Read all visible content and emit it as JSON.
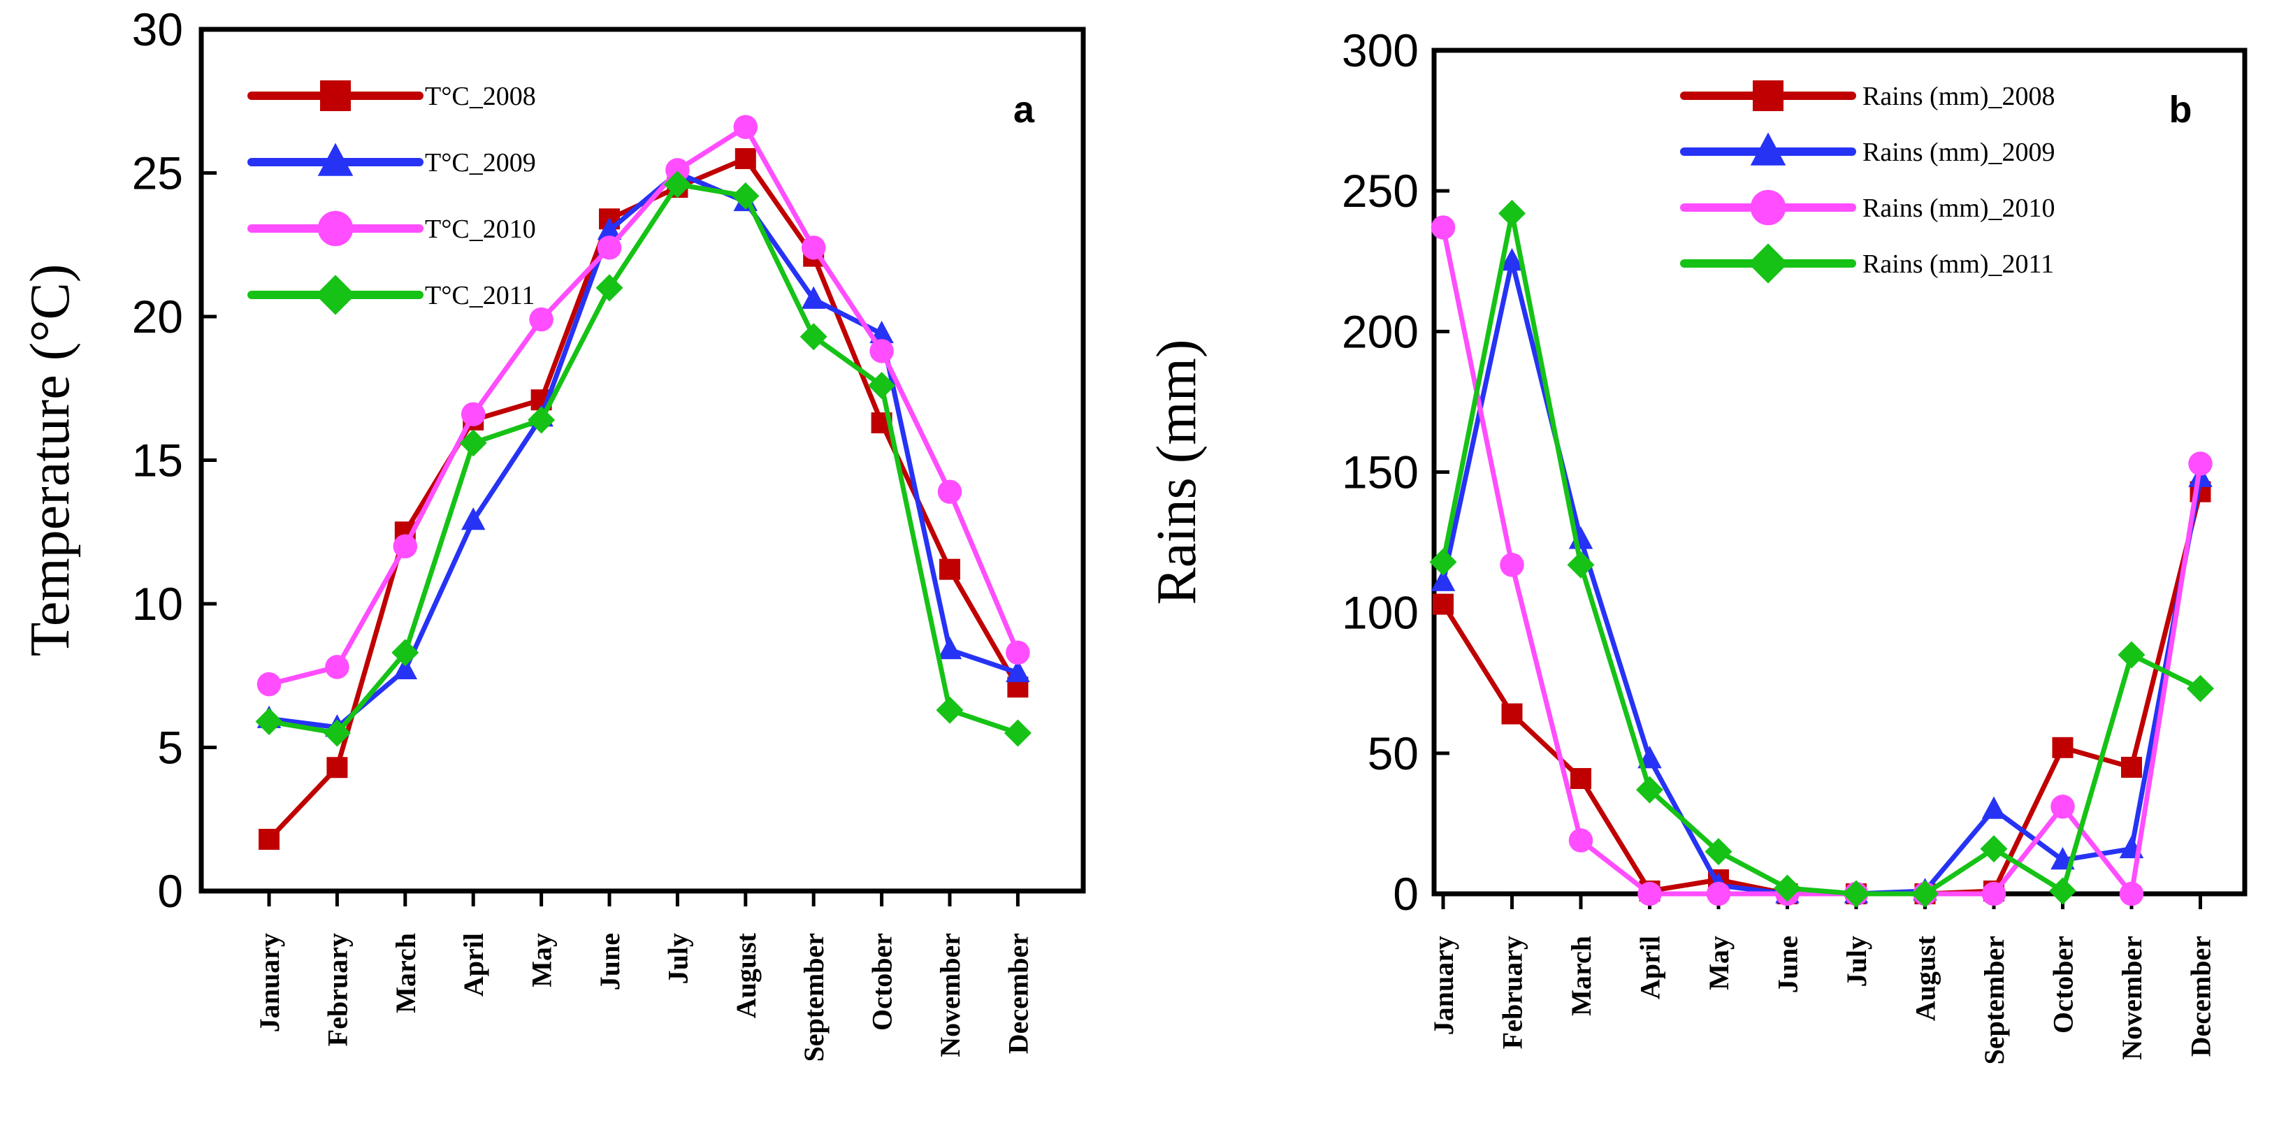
{
  "chart_data": [
    {
      "type": "line",
      "panel_label": "a",
      "title": "",
      "xlabel": "",
      "ylabel": "Temperature (°C)",
      "ylim": [
        0,
        30
      ],
      "yticks": [
        0,
        5,
        10,
        15,
        20,
        25,
        30
      ],
      "grid": false,
      "legend_position": "top-left",
      "categories": [
        "January",
        "February",
        "March",
        "April",
        "May",
        "June",
        "July",
        "August",
        "September",
        "October",
        "November",
        "December"
      ],
      "series": [
        {
          "name": "T°C_2008",
          "color": "#c00000",
          "marker": "square",
          "values": [
            1.8,
            4.3,
            12.5,
            16.4,
            17.1,
            23.4,
            24.5,
            25.5,
            22.1,
            16.3,
            11.2,
            7.1
          ]
        },
        {
          "name": "T°C_2009",
          "color": "#2633f5",
          "marker": "triangle",
          "values": [
            6.0,
            5.7,
            7.7,
            12.9,
            16.5,
            23.0,
            25.0,
            24.0,
            20.6,
            19.4,
            8.4,
            7.6
          ]
        },
        {
          "name": "T°C_2010",
          "color": "#ff4dff",
          "marker": "circle",
          "values": [
            7.2,
            7.8,
            12.0,
            16.6,
            19.9,
            22.4,
            25.1,
            26.6,
            22.4,
            18.8,
            13.9,
            8.3
          ]
        },
        {
          "name": "T°C_2011",
          "color": "#16c216",
          "marker": "diamond",
          "values": [
            5.9,
            5.5,
            8.3,
            15.6,
            16.4,
            21.0,
            24.6,
            24.2,
            19.3,
            17.6,
            6.3,
            5.5
          ]
        }
      ]
    },
    {
      "type": "line",
      "panel_label": "b",
      "title": "",
      "xlabel": "",
      "ylabel": "Rains (mm)",
      "ylim": [
        0,
        300
      ],
      "yticks": [
        0,
        50,
        100,
        150,
        200,
        250,
        300
      ],
      "grid": false,
      "legend_position": "top-right",
      "categories": [
        "January",
        "February",
        "March",
        "April",
        "May",
        "June",
        "July",
        "August",
        "September",
        "October",
        "November",
        "December"
      ],
      "series": [
        {
          "name": "Rains (mm)_2008",
          "color": "#c00000",
          "marker": "square",
          "values": [
            103,
            64,
            41,
            1,
            5,
            0,
            0,
            0,
            1,
            52,
            45,
            143
          ]
        },
        {
          "name": "Rains (mm)_2009",
          "color": "#2633f5",
          "marker": "triangle",
          "values": [
            111,
            225,
            126,
            48,
            3,
            0,
            0,
            1,
            30,
            12,
            16,
            148
          ]
        },
        {
          "name": "Rains (mm)_2010",
          "color": "#ff4dff",
          "marker": "circle",
          "values": [
            237,
            117,
            19,
            0,
            0,
            0,
            0,
            0,
            0,
            31,
            0,
            153
          ]
        },
        {
          "name": "Rains (mm)_2011",
          "color": "#16c216",
          "marker": "diamond",
          "values": [
            118,
            242,
            117,
            37,
            15,
            2,
            0,
            0,
            16,
            1,
            85,
            73
          ]
        }
      ]
    }
  ]
}
